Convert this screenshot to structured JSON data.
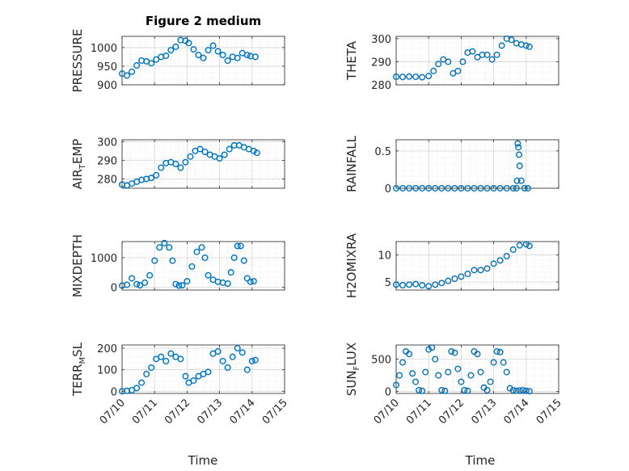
{
  "figure": {
    "title": "Figure 2 medium",
    "marker_color": "#0072BD",
    "xlabel": "Time"
  },
  "chart_data": [
    {
      "id": "pressure",
      "type": "scatter",
      "title": "Figure 2 medium",
      "ylabel": "PRESSURE",
      "ylim": [
        900,
        1030
      ],
      "yticks": [
        900,
        950,
        1000
      ],
      "yticklabels": [
        "900",
        "950",
        "1000"
      ],
      "xlim": [
        0,
        5
      ],
      "xticks": [
        0,
        1,
        2,
        3,
        4,
        5
      ],
      "xticklabels": [],
      "grid": true,
      "x": [
        0,
        0.15,
        0.3,
        0.45,
        0.6,
        0.75,
        0.9,
        1.05,
        1.2,
        1.35,
        1.5,
        1.65,
        1.8,
        1.95,
        2.05,
        2.2,
        2.35,
        2.5,
        2.65,
        2.8,
        2.95,
        3.1,
        3.25,
        3.4,
        3.55,
        3.7,
        3.85,
        3.95,
        4.1
      ],
      "y": [
        930,
        925,
        935,
        952,
        965,
        963,
        958,
        968,
        975,
        978,
        993,
        1002,
        1020,
        1018,
        1012,
        995,
        980,
        972,
        993,
        1005,
        990,
        980,
        965,
        975,
        972,
        985,
        980,
        977,
        975
      ]
    },
    {
      "id": "theta",
      "type": "scatter",
      "ylabel": "THETA",
      "ylim": [
        280,
        301
      ],
      "yticks": [
        280,
        290,
        300
      ],
      "yticklabels": [
        "280",
        "290",
        "300"
      ],
      "xlim": [
        0,
        5
      ],
      "xticks": [
        0,
        1,
        2,
        3,
        4,
        5
      ],
      "xticklabels": [],
      "grid": true,
      "x": [
        0,
        0.2,
        0.4,
        0.6,
        0.8,
        1.0,
        1.15,
        1.3,
        1.45,
        1.6,
        1.75,
        1.9,
        2.05,
        2.2,
        2.35,
        2.5,
        2.65,
        2.8,
        2.95,
        3.1,
        3.25,
        3.4,
        3.55,
        3.7,
        3.85,
        4.0,
        4.1
      ],
      "y": [
        283.5,
        283.4,
        283.6,
        283.5,
        283.3,
        283.8,
        286,
        289,
        291,
        290,
        285,
        286,
        290,
        294,
        294.5,
        292,
        293,
        293,
        291,
        293,
        297,
        300,
        299.5,
        298,
        297.5,
        297,
        296.5
      ]
    },
    {
      "id": "air_temp",
      "type": "scatter",
      "ylabel_main": "AIR",
      "ylabel_sub": "T",
      "ylabel_rest": "EMP",
      "ylim": [
        275,
        301
      ],
      "yticks": [
        280,
        290,
        300
      ],
      "yticklabels": [
        "280",
        "290",
        "300"
      ],
      "xlim": [
        0,
        5
      ],
      "xticks": [
        0,
        1,
        2,
        3,
        4,
        5
      ],
      "xticklabels": [],
      "grid": true,
      "x": [
        0,
        0.15,
        0.3,
        0.45,
        0.6,
        0.75,
        0.9,
        1.05,
        1.2,
        1.35,
        1.5,
        1.65,
        1.8,
        1.95,
        2.1,
        2.25,
        2.4,
        2.55,
        2.7,
        2.85,
        3.0,
        3.15,
        3.3,
        3.45,
        3.6,
        3.75,
        3.9,
        4.05,
        4.15
      ],
      "y": [
        277,
        276.5,
        277.5,
        278.5,
        279.5,
        280,
        280.5,
        282,
        286,
        288.5,
        289,
        288,
        286,
        289,
        292,
        295,
        296,
        294.5,
        293,
        292,
        291,
        293,
        296,
        298,
        298,
        297,
        296,
        295,
        294
      ]
    },
    {
      "id": "rainfall",
      "type": "scatter",
      "ylabel": "RAINFALL",
      "ylim": [
        0,
        0.65
      ],
      "yticks": [
        0,
        0.5
      ],
      "yticklabels": [
        "0",
        "0.5"
      ],
      "xlim": [
        0,
        5
      ],
      "xticks": [
        0,
        1,
        2,
        3,
        4,
        5
      ],
      "xticklabels": [],
      "grid": true,
      "x": [
        0,
        0.2,
        0.4,
        0.6,
        0.8,
        1.0,
        1.2,
        1.4,
        1.6,
        1.8,
        2.0,
        2.2,
        2.4,
        2.6,
        2.8,
        3.0,
        3.2,
        3.4,
        3.6,
        3.7,
        3.72,
        3.74,
        3.76,
        3.78,
        3.8,
        3.85,
        3.95,
        4.05
      ],
      "y": [
        0,
        0,
        0,
        0,
        0,
        0,
        0,
        0,
        0,
        0,
        0,
        0,
        0,
        0,
        0,
        0,
        0,
        0,
        0,
        0,
        0.1,
        0.6,
        0.55,
        0.45,
        0.3,
        0.1,
        0,
        0
      ]
    },
    {
      "id": "mixdepth",
      "type": "scatter",
      "ylabel": "MIXDEPTH",
      "ylim": [
        -100,
        1550
      ],
      "yticks": [
        0,
        1000
      ],
      "yticklabels": [
        "0",
        "1000"
      ],
      "xlim": [
        0,
        5
      ],
      "xticks": [
        0,
        1,
        2,
        3,
        4,
        5
      ],
      "xticklabels": [],
      "grid": true,
      "x": [
        0,
        0.15,
        0.3,
        0.45,
        0.55,
        0.7,
        0.85,
        1.0,
        1.15,
        1.3,
        1.45,
        1.55,
        1.65,
        1.75,
        1.85,
        2.0,
        2.15,
        2.3,
        2.45,
        2.55,
        2.65,
        2.8,
        2.95,
        3.1,
        3.25,
        3.35,
        3.45,
        3.55,
        3.65,
        3.75,
        3.85,
        3.95,
        4.05
      ],
      "y": [
        50,
        80,
        300,
        100,
        60,
        150,
        400,
        900,
        1350,
        1500,
        1350,
        900,
        100,
        50,
        60,
        200,
        700,
        1200,
        1350,
        1000,
        400,
        250,
        180,
        150,
        120,
        500,
        1000,
        1400,
        1400,
        900,
        300,
        180,
        200
      ]
    },
    {
      "id": "h2omixra",
      "type": "scatter",
      "ylabel": "H2OMIXRA",
      "ylim": [
        3.5,
        12.5
      ],
      "yticks": [
        5,
        10
      ],
      "yticklabels": [
        "5",
        "10"
      ],
      "xlim": [
        0,
        5
      ],
      "xticks": [
        0,
        1,
        2,
        3,
        4,
        5
      ],
      "xticklabels": [],
      "grid": true,
      "x": [
        0,
        0.2,
        0.4,
        0.6,
        0.8,
        1.0,
        1.2,
        1.4,
        1.6,
        1.8,
        2.0,
        2.2,
        2.4,
        2.6,
        2.8,
        3.0,
        3.2,
        3.4,
        3.6,
        3.8,
        4.0,
        4.1
      ],
      "y": [
        4.5,
        4.4,
        4.5,
        4.6,
        4.4,
        4.2,
        4.5,
        4.8,
        5.2,
        5.6,
        6.0,
        6.5,
        7.2,
        7.2,
        7.5,
        8.4,
        9.0,
        9.8,
        11.0,
        11.8,
        12.0,
        11.7
      ]
    },
    {
      "id": "terr_msl",
      "type": "scatter",
      "ylabel_main": "TERR",
      "ylabel_sub": "M",
      "ylabel_rest": "SL",
      "ylim": [
        -10,
        215
      ],
      "yticks": [
        0,
        100,
        200
      ],
      "yticklabels": [
        "0",
        "100",
        "200"
      ],
      "xlim": [
        0,
        5
      ],
      "xticks": [
        0,
        1,
        2,
        3,
        4,
        5
      ],
      "xticklabels": [
        "07/10",
        "07/11",
        "07/12",
        "07/13",
        "07/14",
        "07/15"
      ],
      "grid": true,
      "x": [
        0,
        0.15,
        0.3,
        0.45,
        0.6,
        0.75,
        0.9,
        1.05,
        1.2,
        1.35,
        1.5,
        1.65,
        1.8,
        1.95,
        2.05,
        2.2,
        2.35,
        2.5,
        2.65,
        2.8,
        2.95,
        3.1,
        3.25,
        3.4,
        3.55,
        3.7,
        3.85,
        4.0,
        4.1
      ],
      "y": [
        0,
        2,
        5,
        15,
        40,
        80,
        110,
        150,
        160,
        140,
        175,
        160,
        150,
        70,
        40,
        50,
        70,
        80,
        90,
        175,
        185,
        140,
        110,
        160,
        200,
        180,
        100,
        140,
        145
      ]
    },
    {
      "id": "sun_flux",
      "type": "scatter",
      "ylabel_main": "SUN",
      "ylabel_sub": "F",
      "ylabel_rest": "LUX",
      "ylim": [
        -30,
        720
      ],
      "yticks": [
        0,
        500
      ],
      "yticklabels": [
        "0",
        "500"
      ],
      "xlim": [
        0,
        5
      ],
      "xticks": [
        0,
        1,
        2,
        3,
        4,
        5
      ],
      "xticklabels": [
        "07/10",
        "07/11",
        "07/12",
        "07/13",
        "07/14",
        "07/15"
      ],
      "grid": true,
      "x": [
        0,
        0.1,
        0.2,
        0.3,
        0.4,
        0.5,
        0.6,
        0.7,
        0.8,
        0.9,
        1.0,
        1.1,
        1.2,
        1.3,
        1.4,
        1.5,
        1.6,
        1.7,
        1.8,
        1.9,
        2.0,
        2.1,
        2.2,
        2.3,
        2.4,
        2.5,
        2.6,
        2.7,
        2.8,
        2.9,
        3.0,
        3.1,
        3.2,
        3.3,
        3.4,
        3.5,
        3.6,
        3.7,
        3.8,
        3.9,
        4.0,
        4.1
      ],
      "y": [
        100,
        250,
        450,
        620,
        580,
        280,
        150,
        20,
        10,
        300,
        650,
        680,
        500,
        250,
        20,
        10,
        300,
        620,
        600,
        350,
        150,
        20,
        10,
        250,
        620,
        580,
        300,
        60,
        20,
        150,
        450,
        620,
        610,
        450,
        300,
        50,
        20,
        10,
        15,
        20,
        10,
        5
      ]
    }
  ]
}
